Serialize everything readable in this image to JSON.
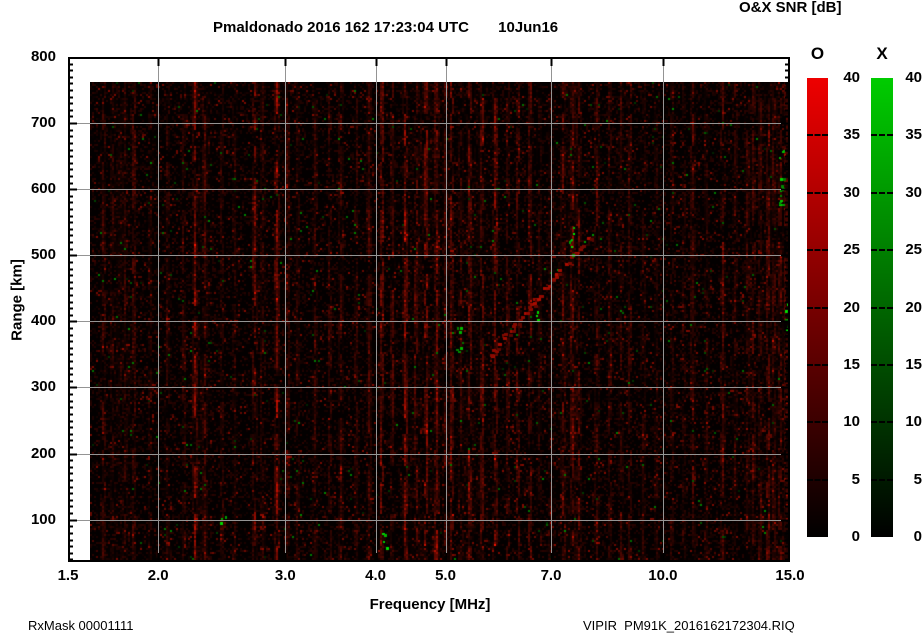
{
  "header": {
    "title": "Pmaldonado 2016 162 17:23:04 UTC       10Jun16",
    "station": "Pmaldonado",
    "timestamp": "2016 162 17:23:04 UTC",
    "date": "10Jun16",
    "colorbar_title": "O&X SNR [dB]"
  },
  "chart_data": {
    "type": "heatmap",
    "subtype": "ionogram",
    "title": "Pmaldonado 2016 162 17:23:04 UTC       10Jun16",
    "xlabel": "Frequency [MHz]",
    "ylabel": "Range [km]",
    "x_scale": "log",
    "xlim": [
      1.5,
      15.0
    ],
    "ylim": [
      36,
      800
    ],
    "x_ticks": [
      1.5,
      2.0,
      3.0,
      4.0,
      5.0,
      7.0,
      10.0,
      15.0
    ],
    "x_tick_labels": [
      "1.5",
      "2.0",
      "3.0",
      "4.0",
      "5.0",
      "7.0",
      "10.0",
      "15.0"
    ],
    "x_gridlines": [
      2.0,
      3.0,
      4.0,
      5.0,
      7.0,
      10.0
    ],
    "y_ticks": [
      100,
      200,
      300,
      400,
      500,
      600,
      700,
      800
    ],
    "y_tick_labels": [
      "100",
      "200",
      "300",
      "400",
      "500",
      "600",
      "700",
      "800"
    ],
    "y_gridlines": [
      100,
      200,
      300,
      400,
      500,
      600,
      700
    ],
    "y_minor_tick_step_km": 10,
    "grid": true,
    "grid_color": "#949494",
    "background_color": "#030000",
    "colorbar": {
      "title": "O&X SNR [dB]",
      "range": [
        0,
        40
      ],
      "ticks": [
        0,
        5,
        10,
        15,
        20,
        25,
        30,
        35,
        40
      ],
      "tick_labels": [
        "0",
        "5",
        "10",
        "15",
        "20",
        "25",
        "30",
        "35",
        "40"
      ],
      "bars": [
        {
          "name": "O",
          "top_color": "#ee0000",
          "bottom_color": "#000000"
        },
        {
          "name": "X",
          "top_color": "#00cc00",
          "bottom_color": "#000000"
        }
      ]
    },
    "noise": {
      "dim_speck_probability": 0.34,
      "bright_speck_probability": 0.04,
      "green_speck_probability": 0.006
    },
    "rfi_stripes_mhz": [
      {
        "f": 1.68,
        "s": 0.45
      },
      {
        "f": 1.73,
        "s": 0.3
      },
      {
        "f": 1.8,
        "s": 0.3
      },
      {
        "f": 1.85,
        "s": 0.45
      },
      {
        "f": 1.95,
        "s": 0.25
      },
      {
        "f": 2.06,
        "s": 0.3
      },
      {
        "f": 2.17,
        "s": 0.35
      },
      {
        "f": 2.25,
        "s": 0.85
      },
      {
        "f": 2.32,
        "s": 0.5
      },
      {
        "f": 2.45,
        "s": 0.3
      },
      {
        "f": 2.55,
        "s": 0.25
      },
      {
        "f": 2.72,
        "s": 0.75
      },
      {
        "f": 2.79,
        "s": 0.4
      },
      {
        "f": 2.92,
        "s": 0.9
      },
      {
        "f": 3.02,
        "s": 0.5
      },
      {
        "f": 3.12,
        "s": 0.3
      },
      {
        "f": 3.3,
        "s": 0.3
      },
      {
        "f": 3.46,
        "s": 0.4
      },
      {
        "f": 3.58,
        "s": 0.5
      },
      {
        "f": 3.76,
        "s": 0.35
      },
      {
        "f": 3.92,
        "s": 0.5
      },
      {
        "f": 4.08,
        "s": 0.9
      },
      {
        "f": 4.22,
        "s": 0.5
      },
      {
        "f": 4.4,
        "s": 0.9
      },
      {
        "f": 4.55,
        "s": 0.6
      },
      {
        "f": 4.7,
        "s": 0.95
      },
      {
        "f": 4.86,
        "s": 0.8
      },
      {
        "f": 5.0,
        "s": 0.5
      },
      {
        "f": 5.1,
        "s": 0.7
      },
      {
        "f": 5.25,
        "s": 0.4
      },
      {
        "f": 5.4,
        "s": 0.8
      },
      {
        "f": 5.62,
        "s": 0.7
      },
      {
        "f": 5.86,
        "s": 0.8
      },
      {
        "f": 6.1,
        "s": 0.4
      },
      {
        "f": 6.3,
        "s": 0.6
      },
      {
        "f": 6.55,
        "s": 0.6
      },
      {
        "f": 6.75,
        "s": 0.3
      },
      {
        "f": 7.0,
        "s": 0.3
      },
      {
        "f": 7.28,
        "s": 0.6
      },
      {
        "f": 7.5,
        "s": 0.7
      },
      {
        "f": 7.65,
        "s": 0.55
      },
      {
        "f": 8.1,
        "s": 0.5
      },
      {
        "f": 8.45,
        "s": 0.4
      },
      {
        "f": 8.75,
        "s": 0.3
      },
      {
        "f": 9.0,
        "s": 0.45
      },
      {
        "f": 9.4,
        "s": 0.3
      },
      {
        "f": 9.8,
        "s": 0.25
      },
      {
        "f": 10.3,
        "s": 0.3
      },
      {
        "f": 10.7,
        "s": 0.25
      },
      {
        "f": 11.0,
        "s": 0.5
      },
      {
        "f": 11.5,
        "s": 0.25
      },
      {
        "f": 12.1,
        "s": 0.6
      },
      {
        "f": 12.6,
        "s": 0.3
      },
      {
        "f": 13.1,
        "s": 0.4
      },
      {
        "f": 13.35,
        "s": 0.5
      },
      {
        "f": 13.65,
        "s": 0.45
      },
      {
        "f": 14.0,
        "s": 0.7
      },
      {
        "f": 14.25,
        "s": 0.5
      },
      {
        "f": 14.55,
        "s": 0.6
      },
      {
        "f": 14.8,
        "s": 0.5
      },
      {
        "f": 1.78,
        "s": 0.12,
        "w": 14
      },
      {
        "f": 2.3,
        "s": 0.1,
        "w": 12
      },
      {
        "f": 4.65,
        "s": 0.12,
        "w": 18
      },
      {
        "f": 5.5,
        "s": 0.08,
        "w": 20
      },
      {
        "f": 7.45,
        "s": 0.08,
        "w": 12
      },
      {
        "f": 14.3,
        "s": 0.1,
        "w": 16
      }
    ],
    "oblique_trace": {
      "f_start_mhz": 5.75,
      "range_start_km": 350,
      "f_end_mhz": 7.9,
      "range_end_km": 530,
      "color": "red",
      "fill_fraction": 0.6
    },
    "green_clusters": [
      {
        "f_mhz": 14.55,
        "range_km": [
          575,
          660
        ],
        "count": 16
      },
      {
        "f_mhz": 14.75,
        "range_km": [
          385,
          435
        ],
        "count": 8
      },
      {
        "f_mhz": 5.2,
        "range_km": [
          355,
          395
        ],
        "count": 7
      },
      {
        "f_mhz": 7.45,
        "range_km": [
          500,
          555
        ],
        "count": 7
      },
      {
        "f_mhz": 6.7,
        "range_km": [
          400,
          425
        ],
        "count": 4
      },
      {
        "f_mhz": 4.1,
        "range_km": [
          55,
          80
        ],
        "count": 4
      },
      {
        "f_mhz": 2.45,
        "range_km": [
          90,
          110
        ],
        "count": 3
      }
    ]
  },
  "footer": {
    "rx_mask": "RxMask 00001111",
    "file": "VIPIR  PM91K_2016162172304.RIQ"
  }
}
